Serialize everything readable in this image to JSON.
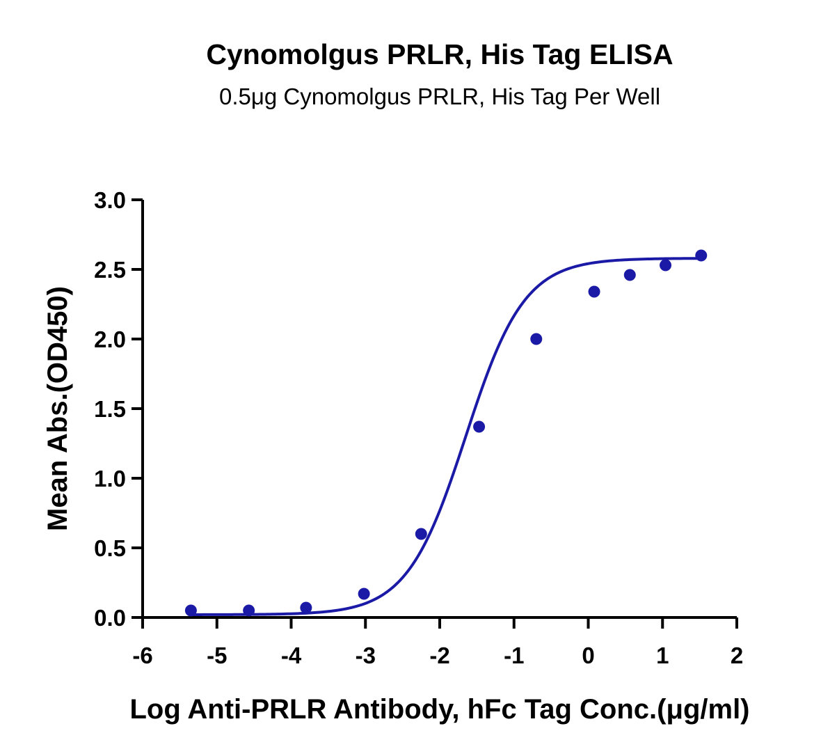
{
  "chart_data": {
    "type": "scatter",
    "title": "Cynomolgus PRLR, His Tag ELISA",
    "subtitle": "0.5μg Cynomolgus PRLR, His Tag Per Well",
    "xlabel": "Log Anti-PRLR Antibody, hFc Tag Conc.(μg/ml)",
    "ylabel": "Mean Abs.(OD450)",
    "xlim": [
      -6,
      2
    ],
    "ylim": [
      0,
      3.0
    ],
    "x_ticks": [
      "-6",
      "-5",
      "-4",
      "-3",
      "-2",
      "-1",
      "0",
      "1",
      "2"
    ],
    "y_ticks": [
      "0.0",
      "0.5",
      "1.0",
      "1.5",
      "2.0",
      "2.5",
      "3.0"
    ],
    "grid": false,
    "legend": "none",
    "color": "#1a1aa6",
    "series": [
      {
        "x": [
          -5.35,
          -4.57,
          -3.8,
          -3.02,
          -2.25,
          -1.47,
          -0.7,
          0.08,
          0.56,
          1.04,
          1.52
        ],
        "y": [
          0.05,
          0.05,
          0.07,
          0.17,
          0.6,
          1.37,
          2.0,
          2.34,
          2.46,
          2.53,
          2.6
        ]
      }
    ],
    "fit_curve": {
      "model": "4PL",
      "bottom": 0.02,
      "top": 2.58,
      "logEC50": -1.65,
      "hill": 1.1
    }
  }
}
